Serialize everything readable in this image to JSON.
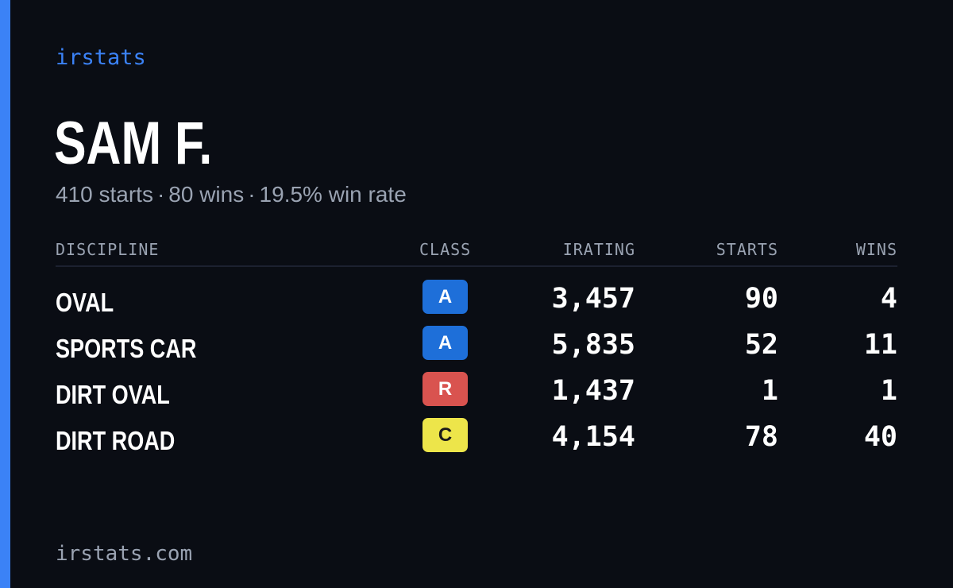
{
  "brand": "irstats",
  "player": {
    "name": "SAM F."
  },
  "summary": {
    "starts": "410 starts",
    "wins": "80 wins",
    "win_rate": "19.5% win rate",
    "separator": "·"
  },
  "table": {
    "headers": {
      "discipline": "DISCIPLINE",
      "class": "CLASS",
      "irating": "IRATING",
      "starts": "STARTS",
      "wins": "WINS"
    },
    "rows": [
      {
        "discipline": "OVAL",
        "class": "A",
        "class_color": "#1e6fd9",
        "class_text_color": "#ffffff",
        "irating": "3,457",
        "starts": "90",
        "wins": "4"
      },
      {
        "discipline": "SPORTS CAR",
        "class": "A",
        "class_color": "#1e6fd9",
        "class_text_color": "#ffffff",
        "irating": "5,835",
        "starts": "52",
        "wins": "11"
      },
      {
        "discipline": "DIRT OVAL",
        "class": "R",
        "class_color": "#d9534f",
        "class_text_color": "#ffffff",
        "irating": "1,437",
        "starts": "1",
        "wins": "1"
      },
      {
        "discipline": "DIRT ROAD",
        "class": "C",
        "class_color": "#ede54a",
        "class_text_color": "#1a1a1a",
        "irating": "4,154",
        "starts": "78",
        "wins": "40"
      }
    ]
  },
  "footer": {
    "url": "irstats.com"
  },
  "colors": {
    "background": "#0a0d14",
    "accent": "#3b82f6",
    "muted_text": "#9aa3b2",
    "primary_text": "#ffffff",
    "divider": "#1c2130"
  }
}
